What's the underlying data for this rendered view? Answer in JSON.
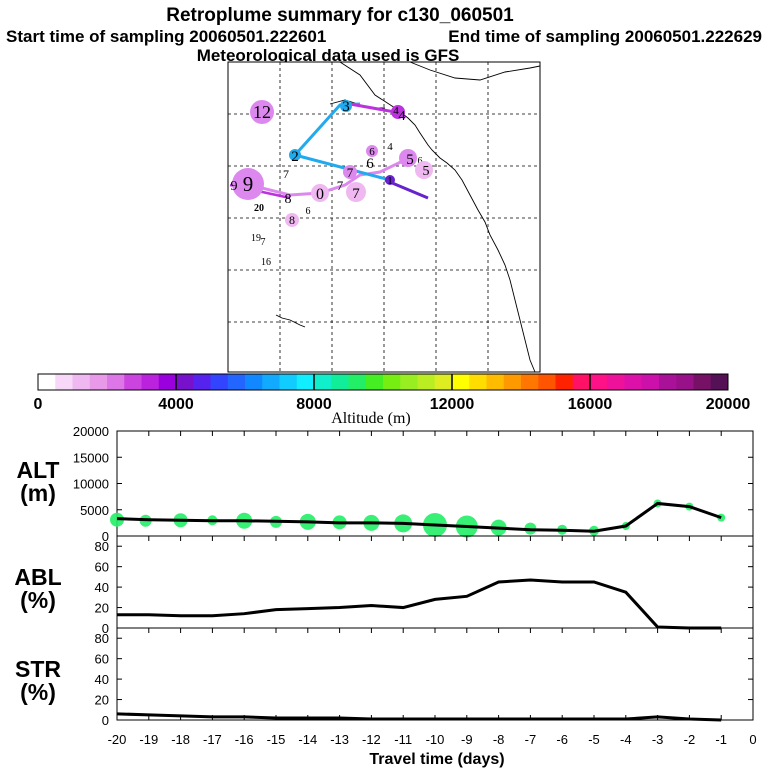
{
  "header": {
    "title": "Retroplume summary for c130_060501",
    "start_label": "Start time of sampling 20060501.222601",
    "end_label": "End time of sampling 20060501.222629",
    "met_label": "Meteorological data used is GFS"
  },
  "map": {
    "trajectory_colors": {
      "light": "#dd88ee",
      "mid": "#bb33dd",
      "blue": "#22aaee",
      "deep": "#6622cc"
    },
    "labels": [
      "12",
      "4",
      "4",
      "3",
      "2",
      "6",
      "4",
      "5",
      "6",
      "5",
      "7",
      "6",
      "7",
      "1",
      "9",
      "9",
      "8",
      "0",
      "7",
      "7",
      "20",
      "6",
      "8",
      "19",
      "7",
      "16"
    ]
  },
  "colorbar": {
    "ticks": [
      "0",
      "4000",
      "8000",
      "12000",
      "16000",
      "20000"
    ],
    "label": "Altitude (m)",
    "colors": [
      "#ffffff",
      "#f8d8f8",
      "#f0b8f0",
      "#e89ae8",
      "#dd77e8",
      "#cc44e0",
      "#bb22dd",
      "#9900dd",
      "#7711cc",
      "#5522ee",
      "#3344ff",
      "#2266ff",
      "#1188ff",
      "#11aaff",
      "#11ccff",
      "#11eeff",
      "#11eecc",
      "#11ee99",
      "#22ee66",
      "#44ee22",
      "#77ee11",
      "#99ee22",
      "#bbee22",
      "#dded22",
      "#ffff00",
      "#ffdd00",
      "#ffbb00",
      "#ff9900",
      "#ff7700",
      "#ff5500",
      "#ff2200",
      "#ff1166",
      "#ff1188",
      "#ee1199",
      "#dd11aa",
      "#cc11aa",
      "#aa1199",
      "#991188",
      "#771166",
      "#551155"
    ]
  },
  "chart_data": [
    {
      "type": "line",
      "panel": "ALT",
      "ylabel": "ALT (m)",
      "ylabel_line1": "ALT",
      "ylabel_line2": "(m)",
      "ylim": [
        0,
        20000
      ],
      "yticks": [
        "20000",
        "15000",
        "10000",
        "5000",
        "0"
      ],
      "x": [
        -20,
        -19,
        -18,
        -17,
        -16,
        -15,
        -14,
        -13,
        -12,
        -11,
        -10,
        -9,
        -8,
        -7,
        -6,
        -5,
        -4,
        -3,
        -2,
        -1
      ],
      "values": [
        3300,
        3100,
        3000,
        2900,
        2900,
        2800,
        2700,
        2500,
        2500,
        2400,
        2100,
        1800,
        1500,
        1200,
        1100,
        900,
        1900,
        6200,
        5600,
        3500
      ],
      "bubbles": [
        {
          "x": -20.0,
          "y": 3100,
          "s": 7
        },
        {
          "x": -19.1,
          "y": 2900,
          "s": 6
        },
        {
          "x": -18.0,
          "y": 3000,
          "s": 7
        },
        {
          "x": -17.0,
          "y": 3000,
          "s": 5
        },
        {
          "x": -16.0,
          "y": 2900,
          "s": 8
        },
        {
          "x": -15.0,
          "y": 2700,
          "s": 6
        },
        {
          "x": -14.0,
          "y": 2700,
          "s": 8
        },
        {
          "x": -13.0,
          "y": 2600,
          "s": 7
        },
        {
          "x": -12.0,
          "y": 2500,
          "s": 8
        },
        {
          "x": -11.0,
          "y": 2400,
          "s": 9
        },
        {
          "x": -10.0,
          "y": 2100,
          "s": 12
        },
        {
          "x": -9.0,
          "y": 1800,
          "s": 11
        },
        {
          "x": -8.0,
          "y": 1600,
          "s": 8
        },
        {
          "x": -7.0,
          "y": 1400,
          "s": 6
        },
        {
          "x": -6.0,
          "y": 1200,
          "s": 5
        },
        {
          "x": -5.0,
          "y": 1000,
          "s": 5
        },
        {
          "x": -4.0,
          "y": 1900,
          "s": 4
        },
        {
          "x": -3.0,
          "y": 6200,
          "s": 4
        },
        {
          "x": -2.0,
          "y": 5600,
          "s": 4
        },
        {
          "x": -1.0,
          "y": 3500,
          "s": 4
        }
      ]
    },
    {
      "type": "line",
      "panel": "ABL",
      "ylabel": "ABL (%)",
      "ylabel_line1": "ABL",
      "ylabel_line2": "(%)",
      "ylim": [
        0,
        90
      ],
      "yticks": [
        "80",
        "60",
        "40",
        "20",
        "0"
      ],
      "x": [
        -20,
        -19,
        -18,
        -17,
        -16,
        -15,
        -14,
        -13,
        -12,
        -11,
        -10,
        -9,
        -8,
        -7,
        -6,
        -5,
        -4,
        -3,
        -2,
        -1
      ],
      "values": [
        13,
        13,
        12,
        12,
        14,
        18,
        19,
        20,
        22,
        20,
        28,
        31,
        45,
        47,
        45,
        45,
        35,
        1,
        0,
        0
      ]
    },
    {
      "type": "line",
      "panel": "STR",
      "ylabel": "STR (%)",
      "ylabel_line1": "STR",
      "ylabel_line2": "(%)",
      "ylim": [
        0,
        90
      ],
      "yticks": [
        "80",
        "60",
        "40",
        "20",
        "0"
      ],
      "x": [
        -20,
        -19,
        -18,
        -17,
        -16,
        -15,
        -14,
        -13,
        -12,
        -11,
        -10,
        -9,
        -8,
        -7,
        -6,
        -5,
        -4,
        -3,
        -2,
        -1
      ],
      "values": [
        6,
        5,
        4,
        3,
        3,
        2,
        2,
        2,
        1,
        1,
        1,
        1,
        1,
        1,
        1,
        1,
        1,
        3,
        1,
        0
      ]
    }
  ],
  "xaxis": {
    "ticks": [
      "-20",
      "-19",
      "-18",
      "-17",
      "-16",
      "-15",
      "-14",
      "-13",
      "-12",
      "-11",
      "-10",
      "-9",
      "-8",
      "-7",
      "-6",
      "-5",
      "-4",
      "-3",
      "-2",
      "-1",
      "0"
    ],
    "label": "Travel time (days)"
  }
}
